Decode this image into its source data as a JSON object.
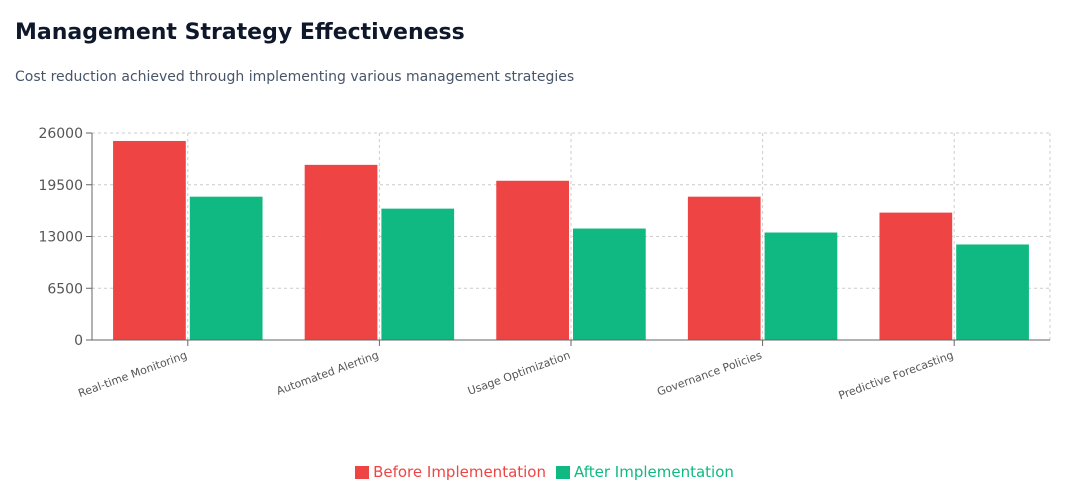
{
  "header": {
    "title": "Management Strategy Effectiveness",
    "subtitle": "Cost reduction achieved through implementing various management strategies"
  },
  "chart_data": {
    "type": "bar",
    "categories": [
      "Real-time Monitoring",
      "Automated Alerting",
      "Usage Optimization",
      "Governance Policies",
      "Predictive Forecasting"
    ],
    "series": [
      {
        "name": "Before Implementation",
        "color": "#ef4444",
        "values": [
          25000,
          22000,
          20000,
          18000,
          16000
        ]
      },
      {
        "name": "After Implementation",
        "color": "#10b981",
        "values": [
          18000,
          16500,
          14000,
          13500,
          12000
        ]
      }
    ],
    "yticks": [
      "26000",
      "19500",
      "13000",
      "6500",
      "0"
    ],
    "ylim": [
      0,
      26000
    ],
    "grid": true,
    "legend_position": "bottom-center"
  }
}
